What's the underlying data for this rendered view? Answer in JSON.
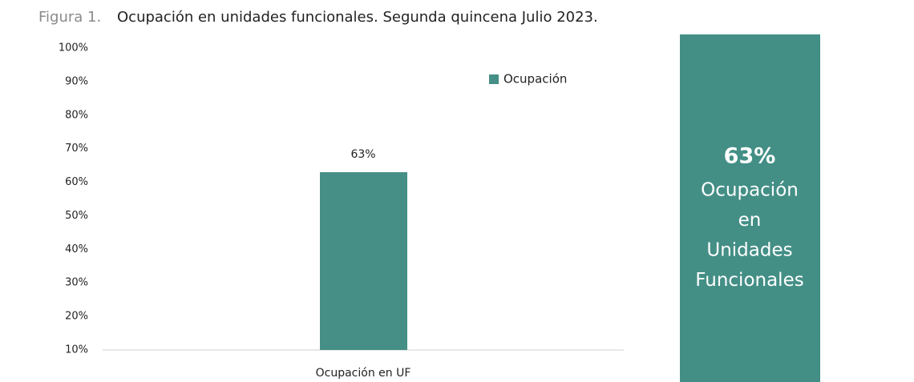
{
  "chart_data": {
    "type": "bar",
    "figure_label": "Figura 1.",
    "title": "Ocupación en unidades funcionales. Segunda quincena Julio 2023.",
    "categories": [
      "Ocupación en UF"
    ],
    "series": [
      {
        "name": "Ocupación",
        "color": "#458f86",
        "values": [
          63
        ],
        "value_labels": [
          "63%"
        ]
      }
    ],
    "ylim": [
      10,
      100
    ],
    "yticks": [
      {
        "value": 100,
        "label": "100%"
      },
      {
        "value": 90,
        "label": "90%"
      },
      {
        "value": 80,
        "label": "80%"
      },
      {
        "value": 70,
        "label": "70%"
      },
      {
        "value": 60,
        "label": "60%"
      },
      {
        "value": 50,
        "label": "50%"
      },
      {
        "value": 40,
        "label": "40%"
      },
      {
        "value": 30,
        "label": "30%"
      },
      {
        "value": 20,
        "label": "20%"
      },
      {
        "value": 10,
        "label": "10%"
      }
    ],
    "grid": false,
    "legend": "top-right",
    "callout": {
      "value": 63,
      "value_label": "63%",
      "color": "#438f86",
      "lines": [
        "Ocupación",
        "en",
        "Unidades",
        "Funcionales"
      ]
    }
  }
}
